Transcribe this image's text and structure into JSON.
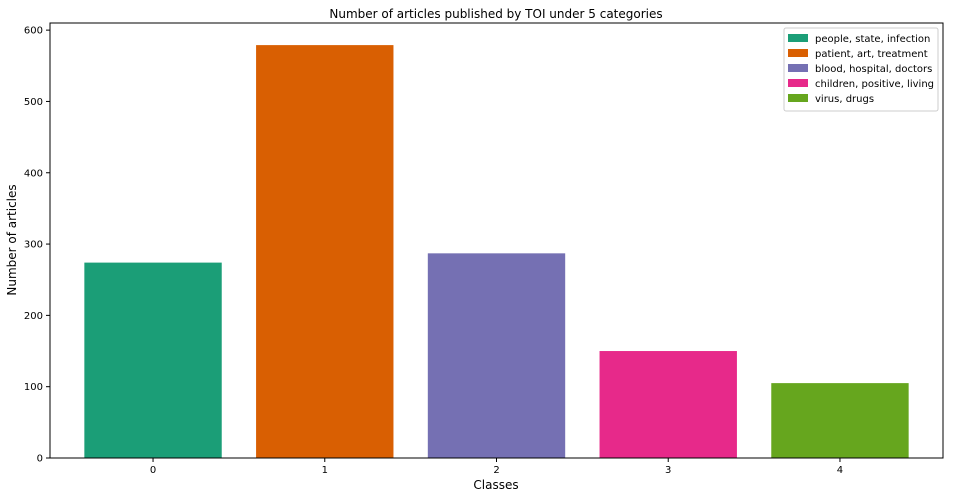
{
  "chart_data": {
    "type": "bar",
    "title": "Number of articles published by TOI under 5 categories",
    "xlabel": "Classes",
    "ylabel": "Number of articles",
    "categories": [
      "0",
      "1",
      "2",
      "3",
      "4"
    ],
    "values": [
      274,
      579,
      287,
      150,
      105
    ],
    "colors": [
      "#1b9e77",
      "#d95f02",
      "#7570b3",
      "#e7298a",
      "#66a61e"
    ],
    "ylim": [
      0,
      610
    ],
    "yticks": [
      0,
      100,
      200,
      300,
      400,
      500,
      600
    ],
    "grid": false,
    "legend_position": "top-right",
    "legend": [
      {
        "label": "people, state, infection",
        "color": "#1b9e77"
      },
      {
        "label": "patient, art, treatment",
        "color": "#d95f02"
      },
      {
        "label": "blood, hospital, doctors",
        "color": "#7570b3"
      },
      {
        "label": "children, positive, living",
        "color": "#e7298a"
      },
      {
        "label": "virus, drugs",
        "color": "#66a61e"
      }
    ]
  }
}
